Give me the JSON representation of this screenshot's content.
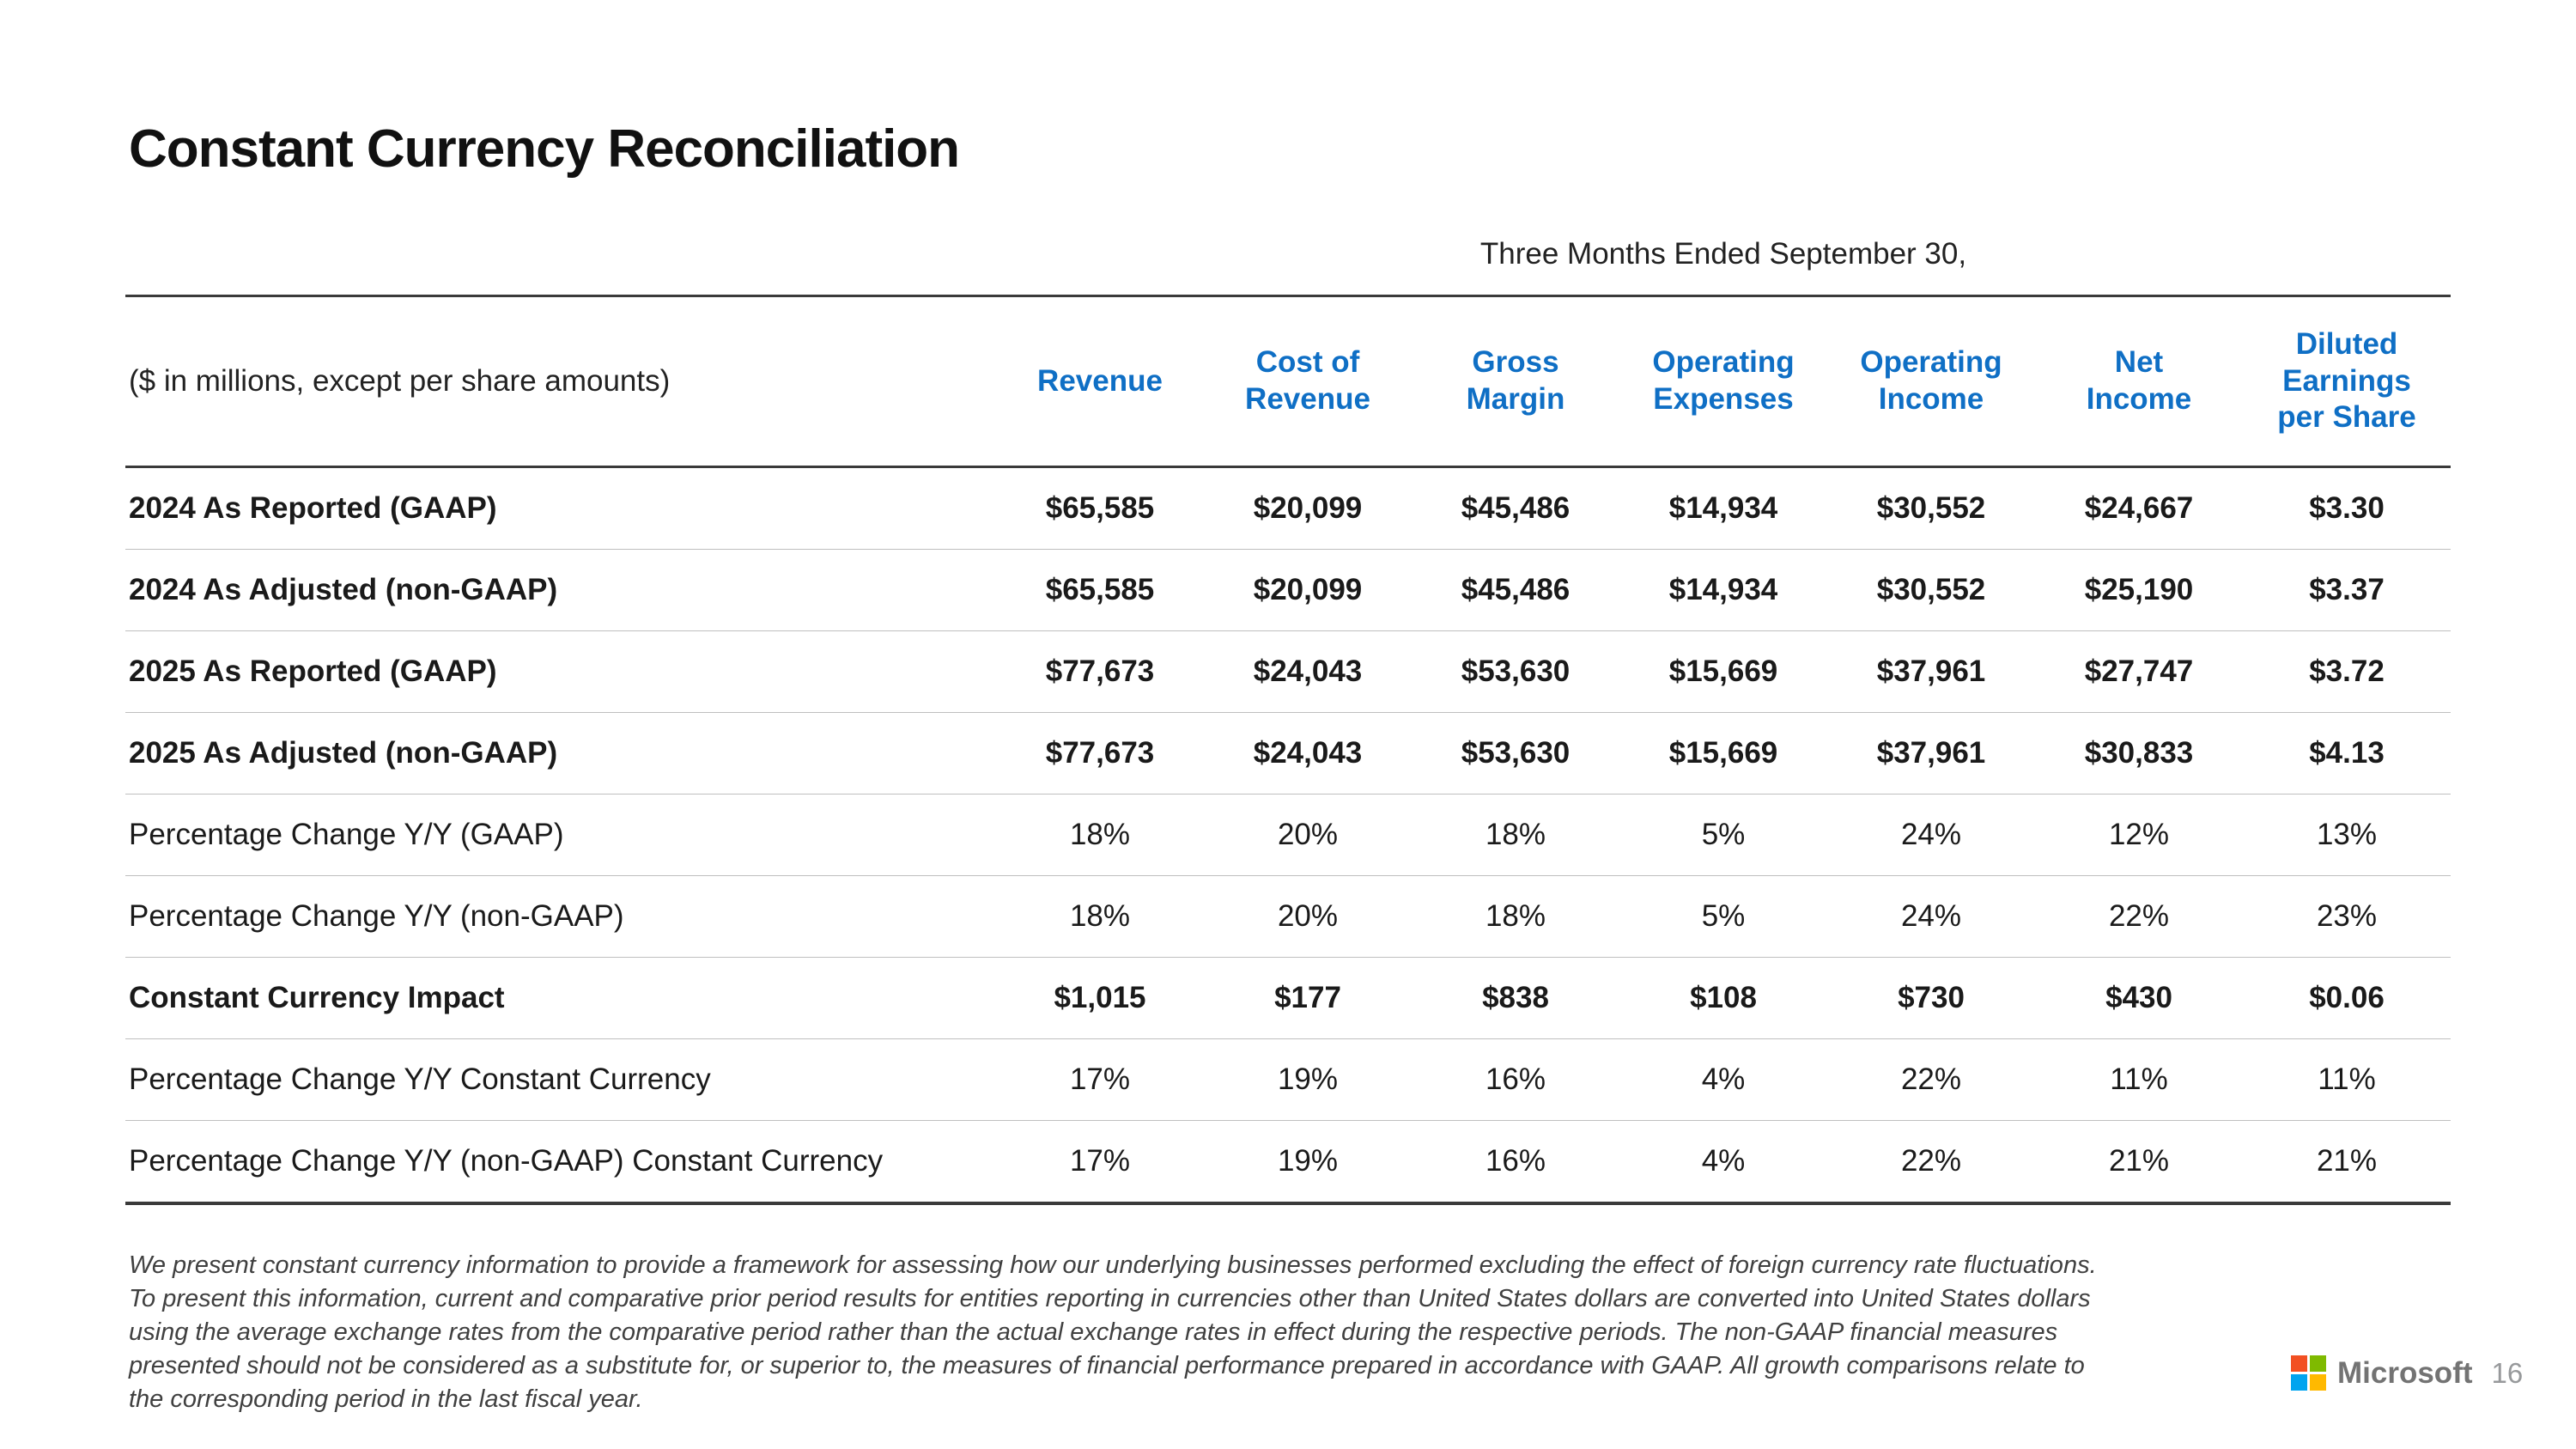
{
  "title": "Constant Currency Reconciliation",
  "table": {
    "period_header": "Three Months Ended September 30,",
    "unit_note": "($ in millions, except per share amounts)",
    "columns": [
      {
        "label": "Revenue"
      },
      {
        "label": "Cost of\nRevenue"
      },
      {
        "label": "Gross\nMargin"
      },
      {
        "label": "Operating\nExpenses"
      },
      {
        "label": "Operating\nIncome"
      },
      {
        "label": "Net\nIncome"
      },
      {
        "label": "Diluted\nEarnings\nper Share"
      }
    ],
    "rows": [
      {
        "label": "2024 As Reported (GAAP)",
        "bold": true,
        "values": [
          "$65,585",
          "$20,099",
          "$45,486",
          "$14,934",
          "$30,552",
          "$24,667",
          "$3.30"
        ]
      },
      {
        "label": "2024 As Adjusted (non-GAAP)",
        "bold": true,
        "values": [
          "$65,585",
          "$20,099",
          "$45,486",
          "$14,934",
          "$30,552",
          "$25,190",
          "$3.37"
        ]
      },
      {
        "label": "2025 As Reported (GAAP)",
        "bold": true,
        "values": [
          "$77,673",
          "$24,043",
          "$53,630",
          "$15,669",
          "$37,961",
          "$27,747",
          "$3.72"
        ]
      },
      {
        "label": "2025 As Adjusted (non-GAAP)",
        "bold": true,
        "values": [
          "$77,673",
          "$24,043",
          "$53,630",
          "$15,669",
          "$37,961",
          "$30,833",
          "$4.13"
        ]
      },
      {
        "label": "Percentage Change Y/Y (GAAP)",
        "bold": false,
        "values": [
          "18%",
          "20%",
          "18%",
          "5%",
          "24%",
          "12%",
          "13%"
        ]
      },
      {
        "label": "Percentage Change Y/Y (non-GAAP)",
        "bold": false,
        "values": [
          "18%",
          "20%",
          "18%",
          "5%",
          "24%",
          "22%",
          "23%"
        ]
      },
      {
        "label": "Constant Currency Impact",
        "bold": true,
        "values": [
          "$1,015",
          "$177",
          "$838",
          "$108",
          "$730",
          "$430",
          "$0.06"
        ]
      },
      {
        "label": "Percentage Change Y/Y Constant Currency",
        "bold": false,
        "values": [
          "17%",
          "19%",
          "16%",
          "4%",
          "22%",
          "11%",
          "11%"
        ]
      },
      {
        "label": "Percentage Change Y/Y (non-GAAP) Constant Currency",
        "bold": false,
        "values": [
          "17%",
          "19%",
          "16%",
          "4%",
          "22%",
          "21%",
          "21%"
        ]
      }
    ]
  },
  "footnote": {
    "lines": [
      "We present constant currency information to provide a framework for assessing how our underlying businesses performed excluding the effect of foreign currency rate fluctuations.",
      "To present this information, current and comparative prior period results for entities reporting in currencies other than United States dollars are converted into United States dollars",
      "using the average exchange rates from the comparative period rather than the actual exchange rates in effect during the respective periods. The non-GAAP financial measures",
      "presented should not be considered as a substitute for, or superior to, the measures of financial performance prepared in accordance with GAAP. All growth comparisons relate to",
      "the corresponding period in the last fiscal year."
    ]
  },
  "footer": {
    "brand": "Microsoft",
    "page_number": "16"
  },
  "colors": {
    "header_blue": "#0f6fc5",
    "rule_dark": "#3a3a3a",
    "rule_light": "#bfbfbf",
    "footnote_text": "#404040",
    "wordmark_gray": "#737373",
    "page_number_gray": "#97999b",
    "logo_red": "#f25022",
    "logo_green": "#7fba00",
    "logo_blue": "#00a4ef",
    "logo_yellow": "#ffb900"
  }
}
